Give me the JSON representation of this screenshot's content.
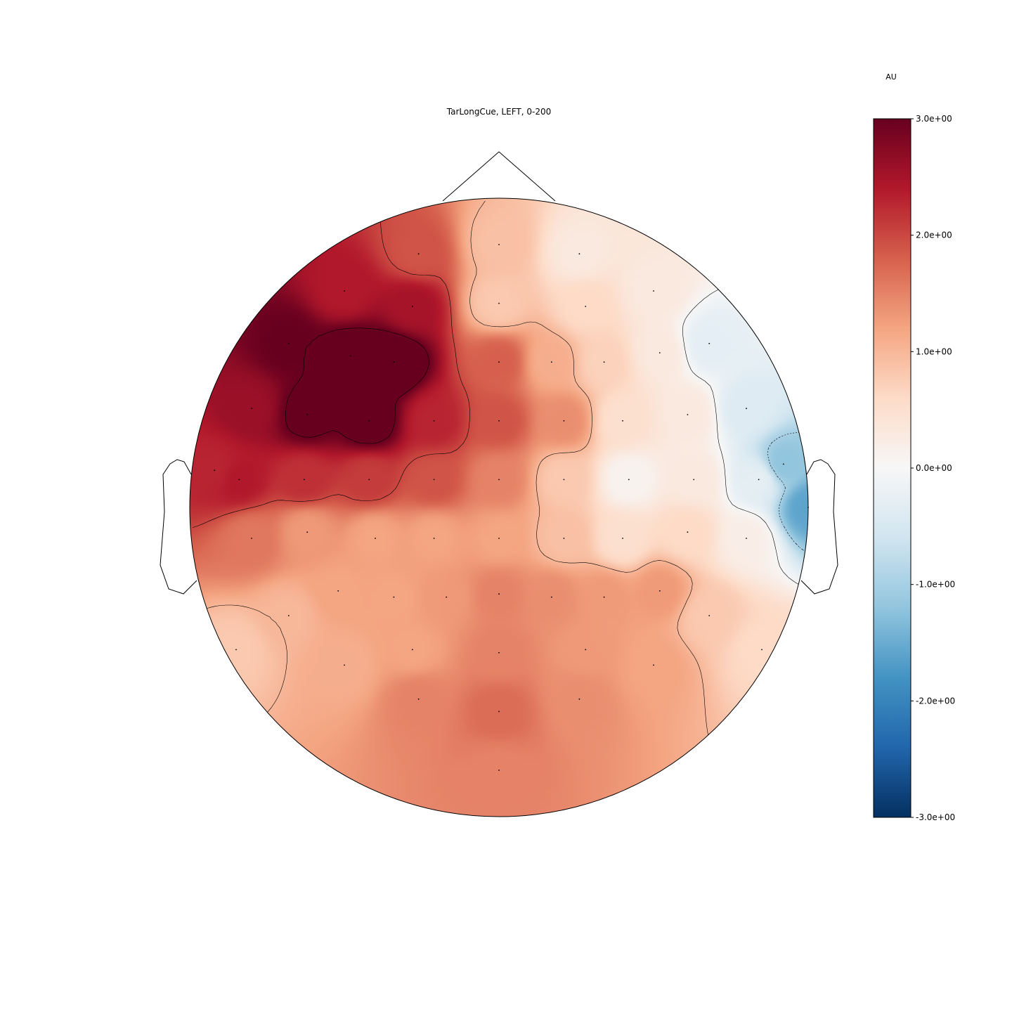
{
  "chart_data": {
    "type": "heatmap",
    "subtype": "topographic-scalp-map",
    "title": "TarLongCue, LEFT, 0-200",
    "colorbar": {
      "label": "AU",
      "colormap": "RdBu_r",
      "vmin": -3.0,
      "vmax": 3.0,
      "tick_values": [
        3.0,
        2.0,
        1.0,
        0.0,
        -1.0,
        -2.0,
        -3.0
      ],
      "tick_labels": [
        "3.0e+00",
        "2.0e+00",
        "1.0e+00",
        "0.0e+00",
        "-1.0e+00",
        "-2.0e+00",
        "-3.0e+00"
      ],
      "colors": [
        "#053061",
        "#2166ac",
        "#4393c3",
        "#92c5de",
        "#d1e5f0",
        "#f7f7f7",
        "#fddbc7",
        "#f4a582",
        "#d6604d",
        "#b2182b",
        "#67001f"
      ]
    },
    "electrodes": [
      {
        "x": 0.0,
        "y": 0.85,
        "v": 0.9
      },
      {
        "x": -0.26,
        "y": 0.82,
        "v": 1.9
      },
      {
        "x": 0.26,
        "y": 0.82,
        "v": 0.3
      },
      {
        "x": -0.5,
        "y": 0.7,
        "v": 2.4
      },
      {
        "x": -0.28,
        "y": 0.65,
        "v": 2.5
      },
      {
        "x": 0.0,
        "y": 0.66,
        "v": 0.8
      },
      {
        "x": 0.28,
        "y": 0.65,
        "v": 0.6
      },
      {
        "x": 0.5,
        "y": 0.7,
        "v": 0.3
      },
      {
        "x": -0.68,
        "y": 0.53,
        "v": 3.0
      },
      {
        "x": -0.48,
        "y": 0.49,
        "v": 3.2
      },
      {
        "x": -0.34,
        "y": 0.47,
        "v": 3.4
      },
      {
        "x": 0.0,
        "y": 0.47,
        "v": 1.8
      },
      {
        "x": 0.17,
        "y": 0.47,
        "v": 1.1
      },
      {
        "x": 0.34,
        "y": 0.47,
        "v": 0.7
      },
      {
        "x": 0.52,
        "y": 0.5,
        "v": 0.3
      },
      {
        "x": 0.68,
        "y": 0.53,
        "v": -0.3
      },
      {
        "x": -0.8,
        "y": 0.32,
        "v": 2.6
      },
      {
        "x": -0.62,
        "y": 0.3,
        "v": 3.1
      },
      {
        "x": -0.42,
        "y": 0.28,
        "v": 3.2
      },
      {
        "x": -0.21,
        "y": 0.28,
        "v": 2.3
      },
      {
        "x": 0.0,
        "y": 0.28,
        "v": 1.9
      },
      {
        "x": 0.21,
        "y": 0.28,
        "v": 1.4
      },
      {
        "x": 0.4,
        "y": 0.28,
        "v": 0.5
      },
      {
        "x": 0.61,
        "y": 0.3,
        "v": 0.3
      },
      {
        "x": 0.8,
        "y": 0.32,
        "v": -0.4
      },
      {
        "x": -0.92,
        "y": 0.12,
        "v": 2.3
      },
      {
        "x": -0.84,
        "y": 0.09,
        "v": 2.4
      },
      {
        "x": -0.63,
        "y": 0.09,
        "v": 2.2
      },
      {
        "x": -0.42,
        "y": 0.09,
        "v": 2.1
      },
      {
        "x": -0.21,
        "y": 0.09,
        "v": 1.9
      },
      {
        "x": 0.0,
        "y": 0.09,
        "v": 1.5
      },
      {
        "x": 0.21,
        "y": 0.09,
        "v": 0.8
      },
      {
        "x": 0.42,
        "y": 0.09,
        "v": 0.1
      },
      {
        "x": 0.63,
        "y": 0.09,
        "v": 0.3
      },
      {
        "x": 0.84,
        "y": 0.09,
        "v": -0.3
      },
      {
        "x": -0.8,
        "y": -0.1,
        "v": 1.6
      },
      {
        "x": -0.62,
        "y": -0.08,
        "v": 1.3
      },
      {
        "x": -0.4,
        "y": -0.1,
        "v": 1.2
      },
      {
        "x": -0.21,
        "y": -0.1,
        "v": 1.2
      },
      {
        "x": 0.0,
        "y": -0.1,
        "v": 1.2
      },
      {
        "x": 0.21,
        "y": -0.1,
        "v": 0.9
      },
      {
        "x": 0.4,
        "y": -0.1,
        "v": 0.5
      },
      {
        "x": 0.61,
        "y": -0.08,
        "v": 0.6
      },
      {
        "x": 0.8,
        "y": -0.1,
        "v": 0.2
      },
      {
        "x": 1.0,
        "y": 0.0,
        "v": -1.6
      },
      {
        "x": 0.92,
        "y": 0.14,
        "v": -1.2
      },
      {
        "x": -0.52,
        "y": -0.27,
        "v": 1.2
      },
      {
        "x": -0.34,
        "y": -0.29,
        "v": 1.2
      },
      {
        "x": -0.17,
        "y": -0.29,
        "v": 1.3
      },
      {
        "x": 0.0,
        "y": -0.28,
        "v": 1.5
      },
      {
        "x": 0.17,
        "y": -0.29,
        "v": 1.4
      },
      {
        "x": 0.34,
        "y": -0.29,
        "v": 1.3
      },
      {
        "x": 0.52,
        "y": -0.27,
        "v": 1.3
      },
      {
        "x": -0.68,
        "y": -0.35,
        "v": 1.0
      },
      {
        "x": 0.68,
        "y": -0.35,
        "v": 0.8
      },
      {
        "x": -0.85,
        "y": -0.46,
        "v": 0.8
      },
      {
        "x": -0.5,
        "y": -0.51,
        "v": 1.1
      },
      {
        "x": -0.28,
        "y": -0.46,
        "v": 1.2
      },
      {
        "x": 0.0,
        "y": -0.47,
        "v": 1.5
      },
      {
        "x": 0.28,
        "y": -0.46,
        "v": 1.3
      },
      {
        "x": 0.5,
        "y": -0.51,
        "v": 1.2
      },
      {
        "x": 0.85,
        "y": -0.46,
        "v": 0.6
      },
      {
        "x": -0.26,
        "y": -0.62,
        "v": 1.5
      },
      {
        "x": 0.0,
        "y": -0.66,
        "v": 1.7
      },
      {
        "x": 0.26,
        "y": -0.62,
        "v": 1.4
      },
      {
        "x": 0.0,
        "y": -0.85,
        "v": 1.5
      }
    ]
  }
}
